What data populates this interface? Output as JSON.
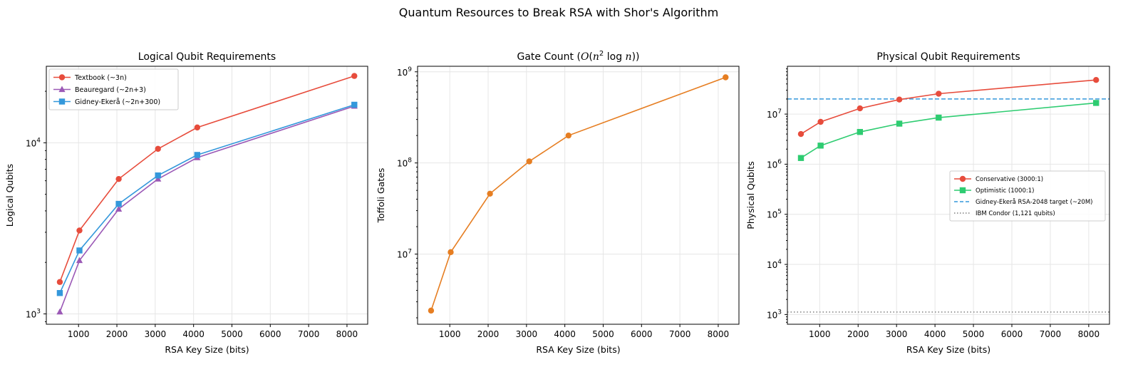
{
  "figure": {
    "suptitle": "Quantum Resources to Break RSA with Shor's Algorithm"
  },
  "chart_data": [
    {
      "type": "line",
      "title": "Logical Qubit Requirements",
      "xlabel": "RSA Key Size (bits)",
      "ylabel": "Logical Qubits",
      "yscale": "log",
      "xlim": [
        160,
        8540
      ],
      "ylim": [
        870,
        28000
      ],
      "grid": true,
      "legend_position": "upper-left",
      "x": [
        512,
        1024,
        2048,
        3072,
        4096,
        8192
      ],
      "x_ticks": [
        "1000",
        "2000",
        "3000",
        "4000",
        "5000",
        "6000",
        "7000",
        "8000"
      ],
      "y_ticks": [
        {
          "base": "10",
          "exp": "3",
          "value": 1000
        },
        {
          "base": "10",
          "exp": "4",
          "value": 10000
        }
      ],
      "series": [
        {
          "name": "Textbook (~3n)",
          "color": "#e74c3c",
          "marker": "circle",
          "values": [
            1536,
            3072,
            6144,
            9216,
            12288,
            24576
          ]
        },
        {
          "name": "Beauregard (~2n+3)",
          "color": "#9b59b6",
          "marker": "triangle",
          "values": [
            1027,
            2051,
            4099,
            6147,
            8195,
            16387
          ]
        },
        {
          "name": "Gidney-Ekerå (~2n+300)",
          "color": "#3498db",
          "marker": "square",
          "values": [
            1324,
            2348,
            4396,
            6444,
            8492,
            16684
          ]
        }
      ]
    },
    {
      "type": "line",
      "title_parts": [
        "Gate Count (",
        "O",
        "(",
        "n",
        "2",
        "log",
        "n",
        "))"
      ],
      "xlabel": "RSA Key Size (bits)",
      "ylabel": "Toffoli Gates",
      "yscale": "log",
      "xlim": [
        160,
        8540
      ],
      "ylim": [
        1700000,
        1150000000
      ],
      "grid": true,
      "x": [
        512,
        1024,
        2048,
        3072,
        4096,
        8192
      ],
      "x_ticks": [
        "1000",
        "2000",
        "3000",
        "4000",
        "5000",
        "6000",
        "7000",
        "8000"
      ],
      "y_ticks": [
        {
          "base": "10",
          "exp": "7",
          "value": 10000000
        },
        {
          "base": "10",
          "exp": "8",
          "value": 100000000
        },
        {
          "base": "10",
          "exp": "9",
          "value": 1000000000
        }
      ],
      "series": [
        {
          "color": "#e67e22",
          "marker": "circle",
          "values": [
            2400000,
            10500000,
            46000000,
            104000000,
            200000000,
            870000000
          ]
        }
      ]
    },
    {
      "type": "line",
      "title": "Physical Qubit Requirements",
      "xlabel": "RSA Key Size (bits)",
      "ylabel": "Physical Qubits",
      "yscale": "log",
      "xlim": [
        160,
        8540
      ],
      "ylim": [
        640,
        90000000
      ],
      "grid": true,
      "legend_position": "center-right",
      "x": [
        512,
        1024,
        2048,
        3072,
        4096,
        8192
      ],
      "x_ticks": [
        "1000",
        "2000",
        "3000",
        "4000",
        "5000",
        "6000",
        "7000",
        "8000"
      ],
      "y_ticks": [
        {
          "base": "10",
          "exp": "3",
          "value": 1000
        },
        {
          "base": "10",
          "exp": "4",
          "value": 10000
        },
        {
          "base": "10",
          "exp": "5",
          "value": 100000
        },
        {
          "base": "10",
          "exp": "6",
          "value": 1000000
        },
        {
          "base": "10",
          "exp": "7",
          "value": 10000000
        }
      ],
      "series": [
        {
          "name": "Conservative (3000:1)",
          "color": "#e74c3c",
          "marker": "circle",
          "values": [
            4000000,
            7000000,
            13000000,
            19500000,
            25500000,
            48000000
          ]
        },
        {
          "name": "Optimistic (1000:1)",
          "color": "#2ecc71",
          "marker": "square",
          "values": [
            1330000,
            2350000,
            4400000,
            6450000,
            8500000,
            16700000
          ]
        }
      ],
      "hlines": [
        {
          "name": "Gidney-Ekerå RSA-2048 target (~20M)",
          "value": 20000000,
          "color": "#3498db",
          "style": "dashed"
        },
        {
          "name": "IBM Condor (1,121 qubits)",
          "value": 1121,
          "color": "#7f7f7f",
          "style": "dotted"
        }
      ]
    }
  ]
}
